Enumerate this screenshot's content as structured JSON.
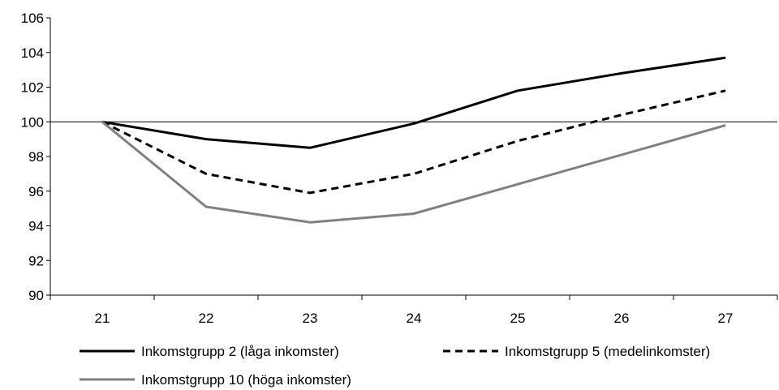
{
  "chart_data": {
    "type": "line",
    "x": [
      "21",
      "22",
      "23",
      "24",
      "25",
      "26",
      "27"
    ],
    "ylim": [
      90,
      106
    ],
    "yticks": [
      90,
      92,
      94,
      96,
      98,
      100,
      102,
      104,
      106
    ],
    "reference_line": 100,
    "legend_position": "bottom",
    "series": [
      {
        "name": "Inkomstgrupp 2 (låga inkomster)",
        "values": [
          100,
          99.0,
          98.5,
          99.9,
          101.8,
          102.8,
          103.7
        ],
        "color": "#000000",
        "style": "solid"
      },
      {
        "name": "Inkomstgrupp 5 (medelinkomster)",
        "values": [
          100,
          97.0,
          95.9,
          97.0,
          98.9,
          100.4,
          101.8
        ],
        "color": "#000000",
        "style": "dashed"
      },
      {
        "name": "Inkomstgrupp 10 (höga inkomster)",
        "values": [
          100,
          95.1,
          94.2,
          94.7,
          96.4,
          98.1,
          99.8
        ],
        "color": "#808080",
        "style": "solid"
      }
    ]
  }
}
